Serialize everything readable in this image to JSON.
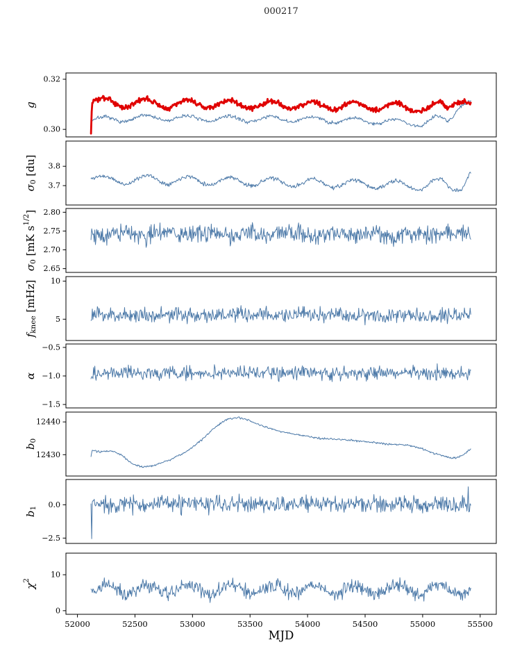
{
  "chart_data": {
    "type": "line",
    "title": "000217",
    "xlabel": "MJD",
    "x_range": [
      51900,
      55640
    ],
    "x_data_range": [
      52118,
      55420
    ],
    "x_ticks": [
      {
        "v": 52000,
        "label": "52000"
      },
      {
        "v": 52500,
        "label": "52500"
      },
      {
        "v": 53000,
        "label": "53000"
      },
      {
        "v": 53500,
        "label": "53500"
      },
      {
        "v": 54000,
        "label": "54000"
      },
      {
        "v": 54500,
        "label": "54500"
      },
      {
        "v": 55000,
        "label": "55000"
      },
      {
        "v": 55500,
        "label": "55500"
      }
    ],
    "colors": {
      "line": "#4c79a8",
      "highlight": "#e00000",
      "axis": "#000000",
      "text": "#000000"
    },
    "panels": [
      {
        "id": "g",
        "ylabel_segments": [
          {
            "t": "g",
            "s": "i"
          }
        ],
        "ylim": [
          0.297,
          0.3225
        ],
        "yticks": [
          {
            "v": 0.3,
            "label": "0.30"
          },
          {
            "v": 0.32,
            "label": "0.32"
          }
        ],
        "series": [
          {
            "name": "g-thin-series",
            "color": "line",
            "width": 1,
            "baseline": [
              [
                52118,
                0.2997
              ],
              [
                52126,
                0.304
              ],
              [
                52300,
                0.3038
              ],
              [
                52600,
                0.3047
              ],
              [
                53200,
                0.3042
              ],
              [
                54000,
                0.304
              ],
              [
                54700,
                0.3032
              ],
              [
                55000,
                0.3022
              ],
              [
                55120,
                0.3047
              ],
              [
                55220,
                0.303
              ],
              [
                55330,
                0.3105
              ],
              [
                55420,
                0.3112
              ]
            ],
            "osc": {
              "amp": 0.0011,
              "period": 362,
              "phase_peak": 52230
            },
            "noise": 0.00035,
            "seed": 7
          },
          {
            "name": "g-highlight-series",
            "color": "highlight",
            "width": 2.8,
            "baseline": [
              [
                52118,
                0.2992
              ],
              [
                52126,
                0.3115
              ],
              [
                52200,
                0.3107
              ],
              [
                52700,
                0.3103
              ],
              [
                53500,
                0.3099
              ],
              [
                54300,
                0.3094
              ],
              [
                54800,
                0.309
              ],
              [
                55060,
                0.3083
              ],
              [
                55150,
                0.3094
              ],
              [
                55210,
                0.3083
              ],
              [
                55300,
                0.3126
              ],
              [
                55360,
                0.312
              ],
              [
                55420,
                0.31
              ]
            ],
            "osc": {
              "amp": 0.0016,
              "period": 362,
              "phase_peak": 52230
            },
            "noise": 0.0005,
            "seed": 3
          }
        ]
      },
      {
        "id": "sigma0-du",
        "ylabel_segments": [
          {
            "t": "σ",
            "s": "i"
          },
          {
            "t": "0",
            "s": "sub"
          },
          {
            "t": " [du]",
            "s": "n"
          }
        ],
        "ylim": [
          3.6,
          3.93
        ],
        "yticks": [
          {
            "v": 3.7,
            "label": "3.7"
          },
          {
            "v": 3.8,
            "label": "3.8"
          }
        ],
        "series": [
          {
            "name": "sigma0-du-series",
            "color": "line",
            "width": 1,
            "baseline": [
              [
                52118,
                3.745
              ],
              [
                52250,
                3.725
              ],
              [
                52600,
                3.733
              ],
              [
                53500,
                3.72
              ],
              [
                54500,
                3.708
              ],
              [
                55000,
                3.698
              ],
              [
                55150,
                3.718
              ],
              [
                55260,
                3.688
              ],
              [
                55340,
                3.7
              ],
              [
                55420,
                3.772
              ]
            ],
            "osc": {
              "amp": 0.021,
              "period": 362,
              "phase_peak": 52600
            },
            "noise": 0.005,
            "seed": 11
          }
        ]
      },
      {
        "id": "sigma0-mks",
        "ylabel_segments": [
          {
            "t": "σ",
            "s": "i"
          },
          {
            "t": "0",
            "s": "sub"
          },
          {
            "t": " [mK s",
            "s": "n"
          },
          {
            "t": "1/2",
            "s": "sup"
          },
          {
            "t": "]",
            "s": "n"
          }
        ],
        "ylim": [
          2.64,
          2.81
        ],
        "yticks": [
          {
            "v": 2.65,
            "label": "2.65"
          },
          {
            "v": 2.7,
            "label": "2.70"
          },
          {
            "v": 2.75,
            "label": "2.75"
          },
          {
            "v": 2.8,
            "label": "2.80"
          }
        ],
        "series": [
          {
            "name": "sigma0-mks-series",
            "color": "line",
            "width": 1,
            "baseline": [
              [
                52118,
                2.742
              ],
              [
                55420,
                2.742
              ]
            ],
            "osc": {
              "amp": 0.004,
              "period": 362,
              "phase_peak": 52400
            },
            "noise": 0.012,
            "seed": 19
          }
        ]
      },
      {
        "id": "fknee",
        "ylabel_segments": [
          {
            "t": "f",
            "s": "i"
          },
          {
            "t": "knee",
            "s": "sub"
          },
          {
            "t": " [mHz]",
            "s": "n"
          }
        ],
        "ylim": [
          2.2,
          10.6
        ],
        "yticks": [
          {
            "v": 5,
            "label": "5"
          },
          {
            "v": 10,
            "label": "10"
          }
        ],
        "series": [
          {
            "name": "fknee-series",
            "color": "line",
            "width": 1,
            "baseline": [
              [
                52118,
                5.55
              ],
              [
                55420,
                5.55
              ]
            ],
            "noise": 0.5,
            "seed": 23
          }
        ]
      },
      {
        "id": "alpha",
        "ylabel_segments": [
          {
            "t": "α",
            "s": "i"
          }
        ],
        "ylim": [
          -1.56,
          -0.44
        ],
        "yticks": [
          {
            "v": -1.5,
            "label": "−1.5"
          },
          {
            "v": -1.0,
            "label": "−1.0"
          },
          {
            "v": -0.5,
            "label": "−0.5"
          }
        ],
        "series": [
          {
            "name": "alpha-series",
            "color": "line",
            "width": 1,
            "baseline": [
              [
                52118,
                -0.95
              ],
              [
                55420,
                -0.95
              ]
            ],
            "noise": 0.06,
            "seed": 29
          }
        ]
      },
      {
        "id": "b0",
        "ylabel_segments": [
          {
            "t": "b",
            "s": "i"
          },
          {
            "t": "0",
            "s": "sub"
          }
        ],
        "ylim": [
          12423.5,
          12443
        ],
        "yticks": [
          {
            "v": 12430,
            "label": "12430"
          },
          {
            "v": 12440,
            "label": "12440"
          }
        ],
        "series": [
          {
            "name": "b0-series",
            "color": "line",
            "width": 1,
            "baseline": [
              [
                52118,
                12429.2
              ],
              [
                52125,
                12431.3
              ],
              [
                52200,
                12430.8
              ],
              [
                52300,
                12431.2
              ],
              [
                52380,
                12430.0
              ],
              [
                52480,
                12427.2
              ],
              [
                52560,
                12426.3
              ],
              [
                52650,
                12426.6
              ],
              [
                52800,
                12428.4
              ],
              [
                52950,
                12431.0
              ],
              [
                53080,
                12434.5
              ],
              [
                53200,
                12438.5
              ],
              [
                53300,
                12440.8
              ],
              [
                53400,
                12441.3
              ],
              [
                53480,
                12440.6
              ],
              [
                53600,
                12438.8
              ],
              [
                53750,
                12437.2
              ],
              [
                53900,
                12436.2
              ],
              [
                54100,
                12435.0
              ],
              [
                54300,
                12434.6
              ],
              [
                54500,
                12434.0
              ],
              [
                54700,
                12433.2
              ],
              [
                54850,
                12433.0
              ],
              [
                55000,
                12431.8
              ],
              [
                55100,
                12430.4
              ],
              [
                55180,
                12429.6
              ],
              [
                55260,
                12428.8
              ],
              [
                55330,
                12429.4
              ],
              [
                55420,
                12431.8
              ]
            ],
            "noise": 0.15,
            "seed": 31
          }
        ]
      },
      {
        "id": "b1",
        "ylabel_segments": [
          {
            "t": "b",
            "s": "i"
          },
          {
            "t": "1",
            "s": "sub"
          }
        ],
        "ylim": [
          -2.9,
          1.9
        ],
        "yticks": [
          {
            "v": -2.5,
            "label": "−2.5"
          },
          {
            "v": 0.0,
            "label": "0.0"
          }
        ],
        "series": [
          {
            "name": "b1-series",
            "color": "line",
            "width": 1,
            "baseline": [
              [
                52118,
                0.05
              ],
              [
                55420,
                0.05
              ]
            ],
            "noise": 0.32,
            "seed": 37,
            "spikes": [
              [
                52121,
                -2.55
              ],
              [
                55396,
                1.35
              ]
            ]
          }
        ]
      },
      {
        "id": "chi2",
        "ylabel_segments": [
          {
            "t": "χ",
            "s": "i"
          },
          {
            "t": "2",
            "s": "sup"
          }
        ],
        "ylim": [
          -1,
          16
        ],
        "yticks": [
          {
            "v": 0,
            "label": "0"
          },
          {
            "v": 10,
            "label": "10"
          }
        ],
        "series": [
          {
            "name": "chi2-series",
            "color": "line",
            "width": 1,
            "baseline": [
              [
                52118,
                5.9
              ],
              [
                55420,
                5.9
              ]
            ],
            "osc": {
              "amp": 1.35,
              "period": 362,
              "phase_peak": 52250
            },
            "noise": 1.0,
            "seed": 41
          }
        ]
      }
    ]
  }
}
